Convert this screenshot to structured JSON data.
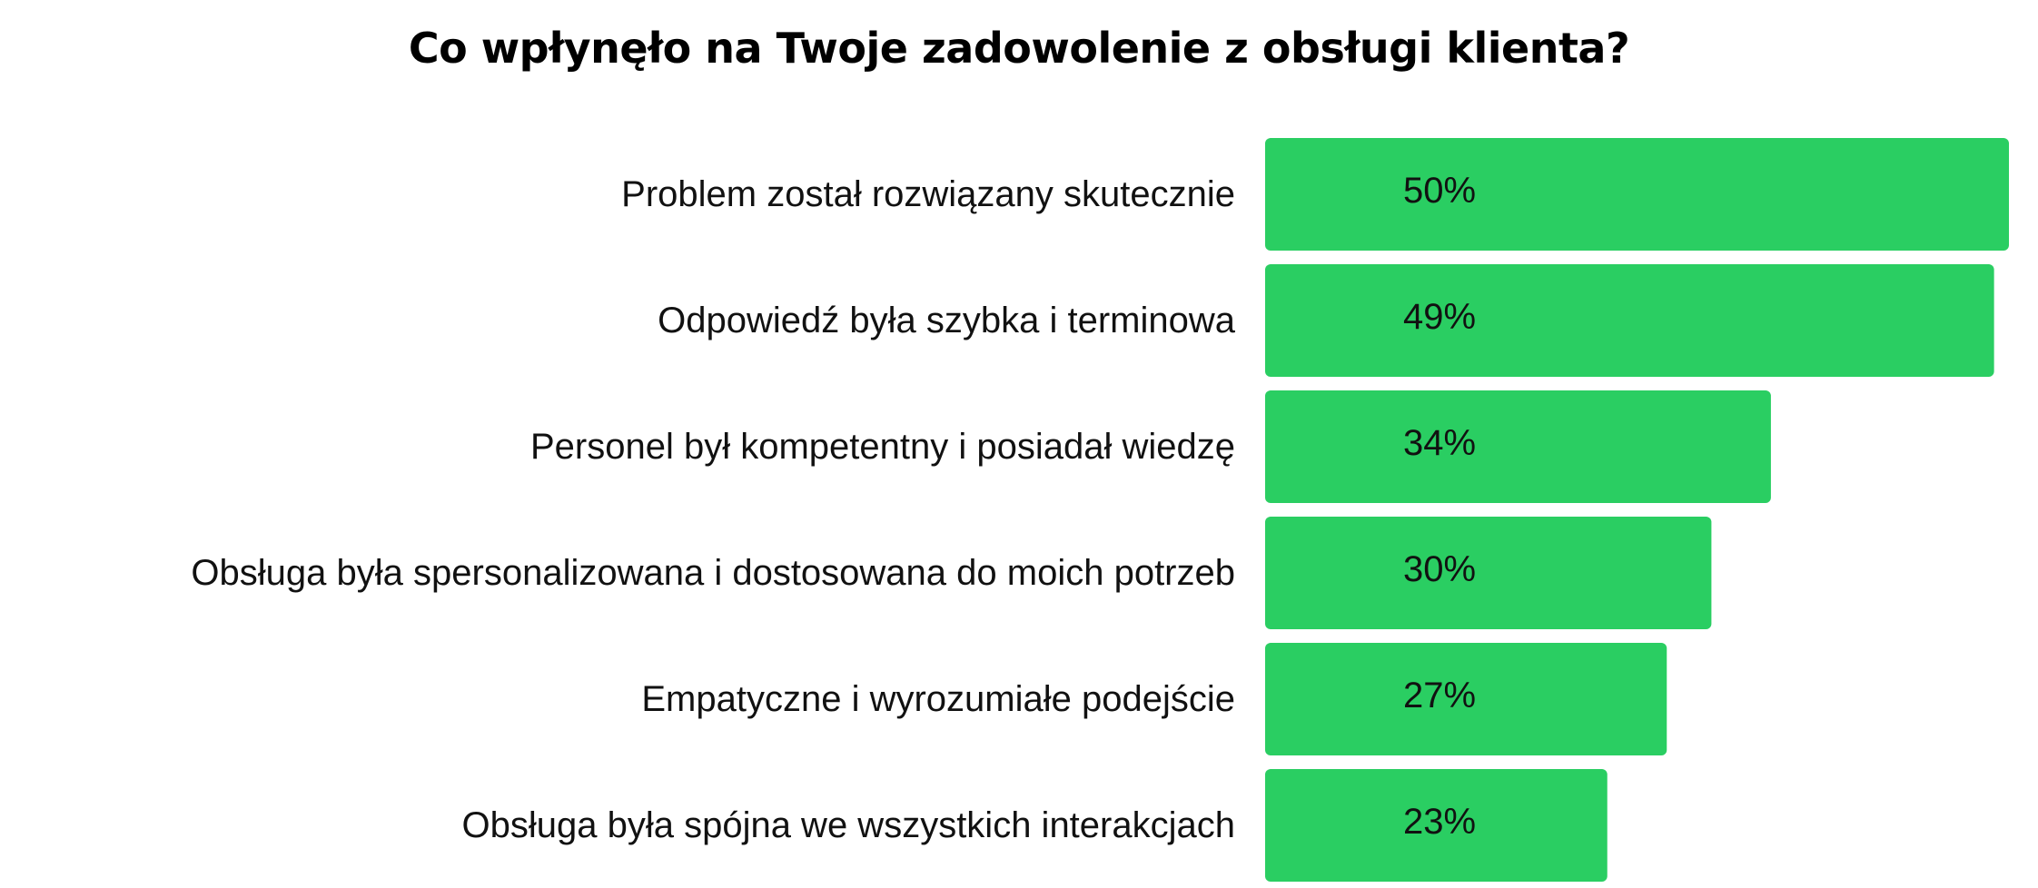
{
  "chart_data": {
    "type": "bar",
    "orientation": "horizontal",
    "title": "Co wpłynęło na Twoje zadowolenie z obsługi klienta?",
    "categories": [
      "Problem został rozwiązany skutecznie",
      "Odpowiedź była szybka i terminowa",
      "Personel był kompetentny i posiadał wiedzę",
      "Obsługa była spersonalizowana i dostosowana do moich potrzeb",
      "Empatyczne i wyrozumiałe podejście",
      "Obsługa była spójna we wszystkich interakcjach"
    ],
    "values": [
      50,
      49,
      34,
      30,
      27,
      23
    ],
    "value_labels": [
      "50%",
      "49%",
      "34%",
      "30%",
      "27%",
      "23%"
    ],
    "xlim": [
      0,
      50
    ],
    "grid": false,
    "legend": "none",
    "bar_color": "#2ACE62"
  }
}
